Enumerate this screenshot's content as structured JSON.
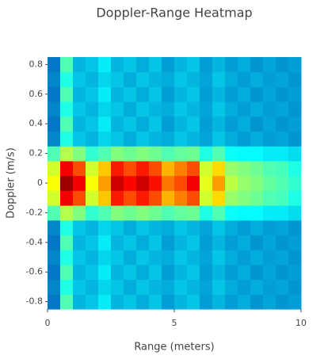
{
  "chart_data": {
    "type": "heatmap",
    "title": "Doppler-Range Heatmap",
    "x_label": "Range (meters)",
    "y_label": "Doppler (m/s)",
    "x": [
      0.25,
      0.75,
      1.25,
      1.75,
      2.25,
      2.75,
      3.25,
      3.75,
      4.25,
      4.75,
      5.25,
      5.75,
      6.25,
      6.75,
      7.25,
      7.75,
      8.25,
      8.75,
      9.25,
      9.75
    ],
    "y": [
      -0.8,
      -0.7,
      -0.6,
      -0.5,
      -0.4,
      -0.3,
      -0.2,
      -0.1,
      0,
      0.1,
      0.2,
      0.3,
      0.4,
      0.5,
      0.6,
      0.7,
      0.8
    ],
    "z": [
      [
        0.2,
        0.45,
        0.28,
        0.3,
        0.35,
        0.28,
        0.3,
        0.27,
        0.3,
        0.25,
        0.28,
        0.3,
        0.25,
        0.28,
        0.25,
        0.27,
        0.24,
        0.26,
        0.24,
        0.25
      ],
      [
        0.22,
        0.4,
        0.3,
        0.28,
        0.32,
        0.3,
        0.27,
        0.3,
        0.28,
        0.27,
        0.3,
        0.28,
        0.26,
        0.3,
        0.27,
        0.25,
        0.27,
        0.25,
        0.26,
        0.24
      ],
      [
        0.2,
        0.45,
        0.28,
        0.3,
        0.35,
        0.28,
        0.3,
        0.27,
        0.3,
        0.25,
        0.28,
        0.3,
        0.25,
        0.28,
        0.25,
        0.27,
        0.24,
        0.26,
        0.24,
        0.25
      ],
      [
        0.22,
        0.4,
        0.3,
        0.28,
        0.32,
        0.3,
        0.27,
        0.3,
        0.28,
        0.27,
        0.3,
        0.28,
        0.26,
        0.3,
        0.27,
        0.25,
        0.27,
        0.25,
        0.26,
        0.24
      ],
      [
        0.2,
        0.45,
        0.28,
        0.3,
        0.35,
        0.28,
        0.3,
        0.27,
        0.3,
        0.25,
        0.28,
        0.3,
        0.25,
        0.28,
        0.25,
        0.27,
        0.24,
        0.26,
        0.24,
        0.25
      ],
      [
        0.22,
        0.4,
        0.3,
        0.28,
        0.32,
        0.3,
        0.27,
        0.3,
        0.28,
        0.27,
        0.3,
        0.28,
        0.26,
        0.3,
        0.27,
        0.25,
        0.27,
        0.25,
        0.26,
        0.24
      ],
      [
        0.45,
        0.55,
        0.5,
        0.42,
        0.45,
        0.5,
        0.48,
        0.5,
        0.48,
        0.45,
        0.47,
        0.48,
        0.4,
        0.45,
        0.38,
        0.37,
        0.37,
        0.35,
        0.35,
        0.33
      ],
      [
        0.58,
        0.88,
        0.8,
        0.58,
        0.68,
        0.85,
        0.8,
        0.85,
        0.8,
        0.7,
        0.75,
        0.8,
        0.58,
        0.66,
        0.52,
        0.5,
        0.48,
        0.45,
        0.44,
        0.4
      ],
      [
        0.62,
        0.97,
        0.88,
        0.62,
        0.72,
        0.92,
        0.87,
        0.92,
        0.86,
        0.76,
        0.8,
        0.88,
        0.6,
        0.72,
        0.56,
        0.52,
        0.5,
        0.47,
        0.45,
        0.42
      ],
      [
        0.58,
        0.88,
        0.8,
        0.58,
        0.68,
        0.85,
        0.8,
        0.85,
        0.8,
        0.7,
        0.75,
        0.8,
        0.58,
        0.66,
        0.52,
        0.5,
        0.48,
        0.45,
        0.44,
        0.4
      ],
      [
        0.45,
        0.55,
        0.5,
        0.42,
        0.45,
        0.5,
        0.48,
        0.5,
        0.48,
        0.45,
        0.47,
        0.48,
        0.4,
        0.45,
        0.38,
        0.37,
        0.37,
        0.35,
        0.35,
        0.33
      ],
      [
        0.22,
        0.4,
        0.3,
        0.28,
        0.32,
        0.3,
        0.27,
        0.3,
        0.28,
        0.27,
        0.3,
        0.28,
        0.26,
        0.3,
        0.27,
        0.25,
        0.27,
        0.25,
        0.26,
        0.24
      ],
      [
        0.2,
        0.45,
        0.28,
        0.3,
        0.35,
        0.28,
        0.3,
        0.27,
        0.3,
        0.25,
        0.28,
        0.3,
        0.25,
        0.28,
        0.25,
        0.27,
        0.24,
        0.26,
        0.24,
        0.25
      ],
      [
        0.22,
        0.4,
        0.3,
        0.28,
        0.32,
        0.3,
        0.27,
        0.3,
        0.28,
        0.27,
        0.3,
        0.28,
        0.26,
        0.3,
        0.27,
        0.25,
        0.27,
        0.25,
        0.26,
        0.24
      ],
      [
        0.2,
        0.45,
        0.28,
        0.3,
        0.35,
        0.28,
        0.3,
        0.27,
        0.3,
        0.25,
        0.28,
        0.3,
        0.25,
        0.28,
        0.25,
        0.27,
        0.24,
        0.26,
        0.24,
        0.25
      ],
      [
        0.22,
        0.4,
        0.3,
        0.28,
        0.32,
        0.3,
        0.27,
        0.3,
        0.28,
        0.27,
        0.3,
        0.28,
        0.26,
        0.3,
        0.27,
        0.25,
        0.27,
        0.25,
        0.26,
        0.24
      ],
      [
        0.2,
        0.45,
        0.28,
        0.3,
        0.35,
        0.28,
        0.3,
        0.27,
        0.3,
        0.25,
        0.28,
        0.3,
        0.25,
        0.28,
        0.25,
        0.27,
        0.24,
        0.26,
        0.24,
        0.25
      ]
    ],
    "zlim": [
      0,
      1
    ],
    "colorscale": [
      [
        0,
        "#000083"
      ],
      [
        0.125,
        "#003caa"
      ],
      [
        0.375,
        "#05ffff"
      ],
      [
        0.625,
        "#ffff00"
      ],
      [
        0.875,
        "#fa0000"
      ],
      [
        1,
        "#800000"
      ]
    ],
    "xlim": [
      0,
      10
    ],
    "xticks": [
      0,
      5,
      10
    ],
    "ylim": [
      -0.85,
      0.85
    ],
    "yticks": [
      -0.8,
      -0.6,
      -0.4,
      -0.2,
      0,
      0.2,
      0.4,
      0.6,
      0.8
    ]
  }
}
